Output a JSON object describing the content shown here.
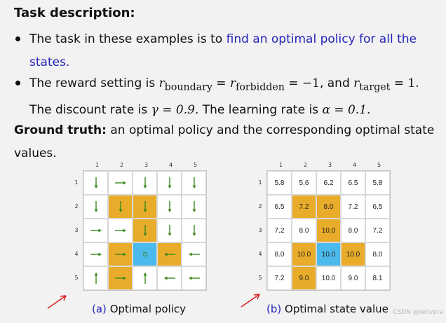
{
  "title": "Task description:",
  "bullet1": {
    "prefix": "The task in these examples is to ",
    "highlight_line1": "find an optimal policy for all the",
    "highlight_line2": "states."
  },
  "bullet2": {
    "line1_prefix": "The reward setting is ",
    "r": "r",
    "sub_boundary": "boundary",
    "eq1": " = ",
    "sub_forbidden": "forbidden",
    "eq2": " = −1",
    "and": ", and ",
    "sub_target": "target",
    "eq3": " = 1.",
    "line2_prefix": "The discount rate is ",
    "gamma": "γ = 0.9",
    "line2_mid": ". The learning rate is ",
    "alpha": "α = 0.1",
    "line2_end": "."
  },
  "ground_truth": {
    "label": "Ground truth:",
    "text_line1": " an optimal policy and the corresponding optimal state",
    "text_line2": "values."
  },
  "grid_labels": {
    "cols": [
      "1",
      "2",
      "3",
      "4",
      "5"
    ],
    "rows": [
      "1",
      "2",
      "3",
      "4",
      "5"
    ]
  },
  "policy": {
    "caption_label": "(a)",
    "caption_text": "Optimal policy",
    "cells": [
      [
        "down",
        "right",
        "down",
        "down",
        "down"
      ],
      [
        "down",
        "down",
        "down",
        "down",
        "down"
      ],
      [
        "right",
        "right",
        "down",
        "down",
        "down"
      ],
      [
        "right",
        "right",
        "stay",
        "left",
        "left"
      ],
      [
        "up",
        "right",
        "up",
        "left",
        "left"
      ]
    ],
    "types": [
      [
        "n",
        "n",
        "n",
        "n",
        "n"
      ],
      [
        "n",
        "f",
        "f",
        "n",
        "n"
      ],
      [
        "n",
        "n",
        "f",
        "n",
        "n"
      ],
      [
        "n",
        "f",
        "t",
        "f",
        "n"
      ],
      [
        "n",
        "f",
        "n",
        "n",
        "n"
      ]
    ]
  },
  "values": {
    "caption_label": "(b)",
    "caption_text": "Optimal state value",
    "cells": [
      [
        "5.8",
        "5.6",
        "6.2",
        "6.5",
        "5.8"
      ],
      [
        "6.5",
        "7.2",
        "8.0",
        "7.2",
        "6.5"
      ],
      [
        "7.2",
        "8.0",
        "10.0",
        "8.0",
        "7.2"
      ],
      [
        "8.0",
        "10.0",
        "10.0",
        "10.0",
        "8.0"
      ],
      [
        "7.2",
        "9.0",
        "10.0",
        "9.0",
        "8.1"
      ]
    ]
  },
  "colors": {
    "forbidden": "#e8ac2a",
    "target": "#4cb9ec",
    "arrow": "#3c8a1e",
    "highlight_text": "#2424b8",
    "annotation": "#d81e1e"
  },
  "watermark": "CSDN @relivera"
}
